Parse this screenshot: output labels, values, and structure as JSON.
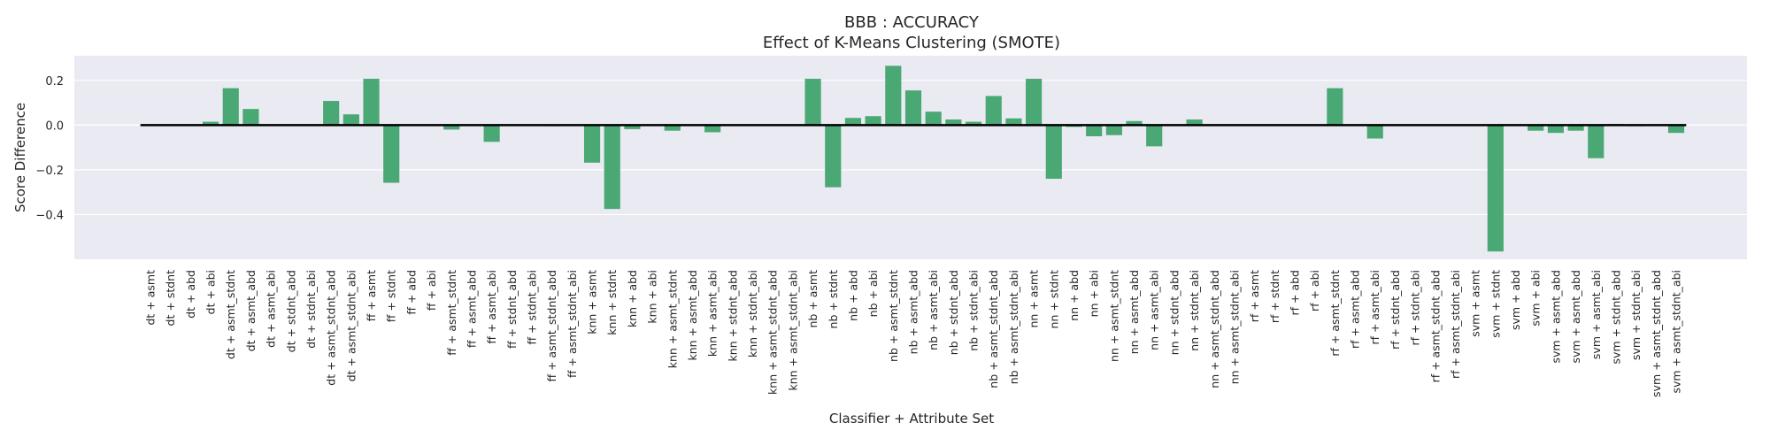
{
  "chart_data": {
    "type": "bar",
    "title": "BBB : ACCURACY",
    "subtitle": "Effect of K-Means Clustering (SMOTE)",
    "xlabel": "Classifier + Attribute Set",
    "ylabel": "Score Difference",
    "ylim": [
      -0.6,
      0.31
    ],
    "yticks": [
      0.2,
      0.0,
      -0.2,
      -0.4
    ],
    "ytick_labels": [
      "0.2",
      "0.0",
      "−0.2",
      "−0.4"
    ],
    "grid": true,
    "legend": "none",
    "colors": {
      "bar": "#4aa874",
      "background": "#eaeaf2",
      "grid": "#ffffff",
      "zero_line": "#000000"
    },
    "categories": [
      "dt + asmt",
      "dt + stdnt",
      "dt + abd",
      "dt + abi",
      "dt + asmt_stdnt",
      "dt + asmt_abd",
      "dt + asmt_abi",
      "dt + stdnt_abd",
      "dt + stdnt_abi",
      "dt + asmt_stdnt_abd",
      "dt + asmt_stdnt_abi",
      "ff + asmt",
      "ff + stdnt",
      "ff + abd",
      "ff + abi",
      "ff + asmt_stdnt",
      "ff + asmt_abd",
      "ff + asmt_abi",
      "ff + stdnt_abd",
      "ff + stdnt_abi",
      "ff + asmt_stdnt_abd",
      "ff + asmt_stdnt_abi",
      "knn + asmt",
      "knn + stdnt",
      "knn + abd",
      "knn + abi",
      "knn + asmt_stdnt",
      "knn + asmt_abd",
      "knn + asmt_abi",
      "knn + stdnt_abd",
      "knn + stdnt_abi",
      "knn + asmt_stdnt_abd",
      "knn + asmt_stdnt_abi",
      "nb + asmt",
      "nb + stdnt",
      "nb + abd",
      "nb + abi",
      "nb + asmt_stdnt",
      "nb + asmt_abd",
      "nb + asmt_abi",
      "nb + stdnt_abd",
      "nb + stdnt_abi",
      "nb + asmt_stdnt_abd",
      "nb + asmt_stdnt_abi",
      "nn + asmt",
      "nn + stdnt",
      "nn + abd",
      "nn + abi",
      "nn + asmt_stdnt",
      "nn + asmt_abd",
      "nn + asmt_abi",
      "nn + stdnt_abd",
      "nn + stdnt_abi",
      "nn + asmt_stdnt_abd",
      "nn + asmt_stdnt_abi",
      "rf + asmt",
      "rf + stdnt",
      "rf + abd",
      "rf + abi",
      "rf + asmt_stdnt",
      "rf + asmt_abd",
      "rf + asmt_abi",
      "rf + stdnt_abd",
      "rf + stdnt_abi",
      "rf + asmt_stdnt_abd",
      "rf + asmt_stdnt_abi",
      "svm + asmt",
      "svm + stdnt",
      "svm + abd",
      "svm + abi",
      "svm + asmt_abd",
      "svm + asmt_abd",
      "svm + asmt_abi",
      "svm + stdnt_abd",
      "svm + stdnt_abi",
      "svm + asmt_stdnt_abd",
      "svm + asmt_stdnt_abi"
    ],
    "values": [
      0.0,
      0.0,
      0.0,
      0.015,
      0.165,
      0.072,
      0.0,
      0.0,
      0.0,
      0.108,
      0.048,
      0.207,
      -0.258,
      0.0,
      0.0,
      -0.02,
      0.0,
      -0.075,
      0.0,
      0.0,
      -0.005,
      0.0,
      -0.168,
      -0.375,
      -0.018,
      0.0,
      -0.025,
      0.0,
      -0.032,
      0.0,
      0.0,
      0.0,
      0.0,
      0.207,
      -0.278,
      0.032,
      0.04,
      0.265,
      0.155,
      0.06,
      0.025,
      0.015,
      0.13,
      0.03,
      0.207,
      -0.24,
      -0.008,
      -0.05,
      -0.045,
      0.018,
      -0.095,
      0.0,
      0.025,
      0.0,
      0.0,
      0.0,
      0.0,
      0.0,
      0.0,
      0.165,
      0.0,
      -0.06,
      0.0,
      0.0,
      0.0,
      0.0,
      0.0,
      -0.565,
      0.0,
      -0.025,
      -0.035,
      -0.025,
      -0.148,
      0.005,
      -0.005,
      0.0,
      -0.035
    ]
  }
}
